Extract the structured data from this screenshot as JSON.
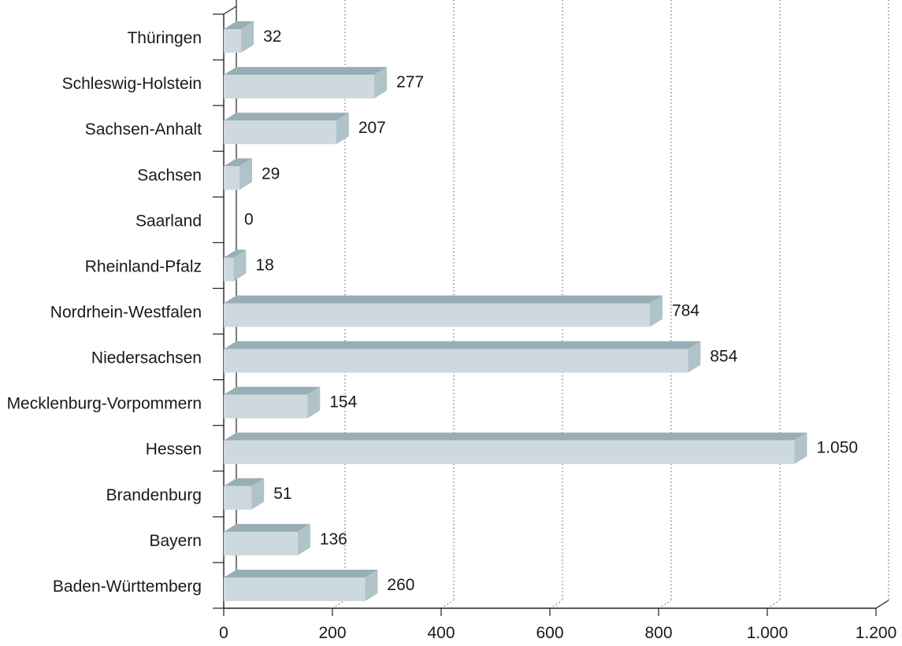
{
  "chart_data": {
    "type": "bar",
    "orientation": "horizontal",
    "style": "3d",
    "categories": [
      "Thüringen",
      "Schleswig-Holstein",
      "Sachsen-Anhalt",
      "Sachsen",
      "Saarland",
      "Rheinland-Pfalz",
      "Nordrhein-Westfalen",
      "Niedersachsen",
      "Mecklenburg-Vorpommern",
      "Hessen",
      "Brandenburg",
      "Bayern",
      "Baden-Württemberg"
    ],
    "values": [
      32,
      277,
      207,
      29,
      0,
      18,
      784,
      854,
      154,
      1050,
      51,
      136,
      260
    ],
    "value_labels": [
      "32",
      "277",
      "207",
      "29",
      "0",
      "18",
      "784",
      "854",
      "154",
      "1.050",
      "51",
      "136",
      "260"
    ],
    "xlim": [
      0,
      1200
    ],
    "x_ticks": [
      0,
      200,
      400,
      600,
      800,
      1000,
      1200
    ],
    "x_tick_labels": [
      "0",
      "200",
      "400",
      "600",
      "800",
      "1.000",
      "1.200"
    ],
    "title": "",
    "xlabel": "",
    "ylabel": "",
    "grid": "vertical dotted",
    "legend": "none",
    "colors": {
      "bar_front": "#cdd9de",
      "bar_top": "#98aeb7",
      "bar_side": "#afc3c9",
      "axis": "#222222",
      "grid": "#555555",
      "text": "#1a1a1a"
    }
  }
}
